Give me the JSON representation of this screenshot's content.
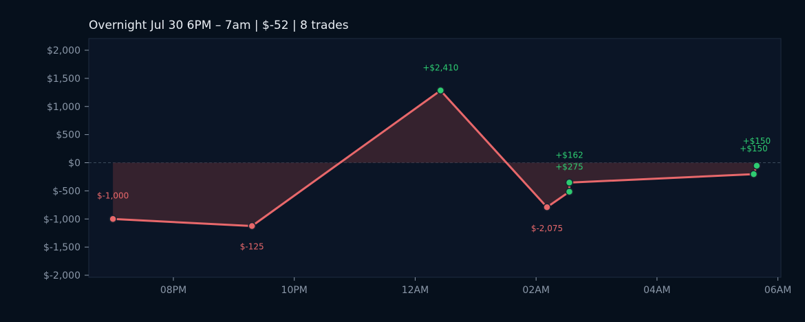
{
  "colors": {
    "page_bg": "#06101c",
    "plot_bg": "#0b1526",
    "frame": "#1e2c40",
    "title": "#e8edf3",
    "tick": "#8a97a8",
    "zero_line": "#3b4a5c",
    "line": "#e8686b",
    "fill": "#3a2330",
    "gain": "#2ecc71",
    "loss": "#e8686b",
    "marker_edge": "#1a2230"
  },
  "chart_data": {
    "type": "line",
    "title": "Overnight  Jul 30 6PM – 7am  |  $-52  |  8 trades",
    "xlabel": "",
    "ylabel": "",
    "x_ticks": [
      "08PM",
      "10PM",
      "12AM",
      "02AM",
      "04AM",
      "06AM"
    ],
    "y_ticks": [
      "$2,000",
      "$1,500",
      "$1,000",
      "$500",
      "$0",
      "$-500",
      "$-1,000",
      "$-1,500",
      "$-2,000"
    ],
    "ylim": [
      -2000,
      2000
    ],
    "xlim_hours": [
      18.6,
      30.05
    ],
    "grid": false,
    "zero_line": true,
    "series": [
      {
        "points": [
          {
            "t": 19.0,
            "y": -1000
          },
          {
            "t": 21.3,
            "y": -1125
          },
          {
            "t": 24.42,
            "y": 1285
          },
          {
            "t": 26.18,
            "y": -790
          },
          {
            "t": 26.55,
            "y": -515
          },
          {
            "t": 26.55,
            "y": -353
          },
          {
            "t": 29.6,
            "y": -203
          },
          {
            "t": 29.65,
            "y": -53
          }
        ]
      }
    ],
    "annotations": [
      {
        "text": "$-1,000",
        "t": 19.0,
        "y": -1000,
        "kind": "loss",
        "pos": "above"
      },
      {
        "text": "$-125",
        "t": 21.3,
        "y": -1125,
        "kind": "loss",
        "pos": "below"
      },
      {
        "text": "+$2,410",
        "t": 24.42,
        "y": 1285,
        "kind": "gain",
        "pos": "above"
      },
      {
        "text": "$-2,075",
        "t": 26.18,
        "y": -790,
        "kind": "loss",
        "pos": "below"
      },
      {
        "text": "+$275",
        "t": 26.55,
        "y": -515,
        "kind": "gain",
        "pos": "above"
      },
      {
        "text": "+$162",
        "t": 26.55,
        "y": -353,
        "kind": "gain",
        "pos": "above"
      },
      {
        "text": "+$150",
        "t": 29.6,
        "y": -203,
        "kind": "gain",
        "pos": "above"
      },
      {
        "text": "+$150",
        "t": 29.65,
        "y": -53,
        "kind": "gain",
        "pos": "above"
      }
    ]
  }
}
